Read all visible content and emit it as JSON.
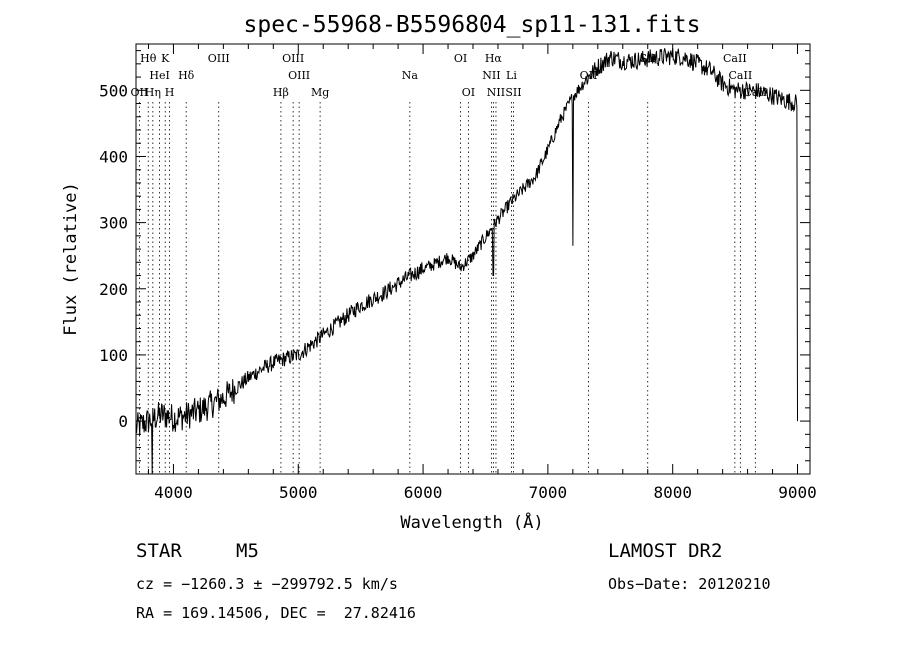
{
  "chart_data": {
    "type": "line",
    "title": "spec-55968-B5596804_sp11-131.fits",
    "xlabel": "Wavelength (Å)",
    "ylabel": "Flux (relative)",
    "xlim": [
      3700,
      9100
    ],
    "ylim": [
      -80,
      570
    ],
    "xticks": [
      4000,
      5000,
      6000,
      7000,
      8000,
      9000
    ],
    "yticks": [
      0,
      100,
      200,
      300,
      400,
      500
    ],
    "grid": false,
    "series": [
      {
        "x": [
          3700,
          3750,
          3800,
          3850,
          3900,
          3950,
          4000,
          4100,
          4200,
          4300,
          4400,
          4500,
          4600,
          4700,
          4800,
          4900,
          5000,
          5100,
          5200,
          5300,
          5400,
          5500,
          5600,
          5700,
          5800,
          5900,
          6000,
          6100,
          6200,
          6300,
          6400,
          6500,
          6600,
          6700,
          6800,
          6900,
          7000,
          7100,
          7200,
          7300,
          7400,
          7500,
          7600,
          7700,
          7800,
          7900,
          8000,
          8100,
          8200,
          8300,
          8400,
          8500,
          8600,
          8700,
          8800,
          8900,
          9000
        ],
        "values": [
          -10,
          -5,
          0,
          5,
          10,
          8,
          5,
          8,
          15,
          25,
          35,
          50,
          65,
          78,
          88,
          95,
          100,
          115,
          130,
          145,
          160,
          175,
          185,
          195,
          208,
          220,
          230,
          238,
          248,
          232,
          250,
          278,
          305,
          330,
          350,
          370,
          410,
          455,
          490,
          515,
          535,
          550,
          545,
          545,
          548,
          550,
          552,
          550,
          540,
          530,
          510,
          500,
          500,
          498,
          492,
          485,
          480
        ]
      }
    ],
    "dips": [
      {
        "x": 3830,
        "y": -80
      },
      {
        "x": 6563,
        "y": 220
      },
      {
        "x": 7200,
        "y": 265
      },
      {
        "x": 9000,
        "y": 0
      }
    ],
    "line_markers": [
      {
        "label": "Hθ",
        "x": 3798,
        "row": 0
      },
      {
        "label": "K",
        "x": 3934,
        "row": 0
      },
      {
        "label": "HeI",
        "x": 3889,
        "row": 1
      },
      {
        "label": "Hδ",
        "x": 4102,
        "row": 1
      },
      {
        "label": "OII",
        "x": 3727,
        "row": 2
      },
      {
        "label": "Hη",
        "x": 3835,
        "row": 2
      },
      {
        "label": "H",
        "x": 3969,
        "row": 2
      },
      {
        "label": "OIII",
        "x": 4363,
        "row": 0
      },
      {
        "label": "OIII",
        "x": 4959,
        "row": 0
      },
      {
        "label": "OIII",
        "x": 5007,
        "row": 1
      },
      {
        "label": "Hβ",
        "x": 4861,
        "row": 2
      },
      {
        "label": "Mg",
        "x": 5175,
        "row": 2
      },
      {
        "label": "Na",
        "x": 5894,
        "row": 1
      },
      {
        "label": "OI",
        "x": 6300,
        "row": 0
      },
      {
        "label": "OI",
        "x": 6363,
        "row": 2
      },
      {
        "label": "Hα",
        "x": 6563,
        "row": 0
      },
      {
        "label": "NII",
        "x": 6548,
        "row": 1
      },
      {
        "label": "Li",
        "x": 6708,
        "row": 1
      },
      {
        "label": "NII",
        "x": 6584,
        "row": 2
      },
      {
        "label": "SII",
        "x": 6724,
        "row": 2
      },
      {
        "label": "OII",
        "x": 7325,
        "row": 1
      },
      {
        "label": "SII",
        "x": 7800,
        "row": 0
      },
      {
        "label": "CaII",
        "x": 8498,
        "row": 0
      },
      {
        "label": "CaII",
        "x": 8542,
        "row": 1
      },
      {
        "label": "CaII",
        "x": 8662,
        "row": 2
      }
    ]
  },
  "info": {
    "object_type": "STAR",
    "subclass": "M5",
    "survey": "LAMOST DR2",
    "cz": "cz = −1260.3 ± −299792.5 km/s",
    "obs_date": "Obs−Date: 20120210",
    "coords": "RA = 169.14506, DEC =  27.82416"
  }
}
